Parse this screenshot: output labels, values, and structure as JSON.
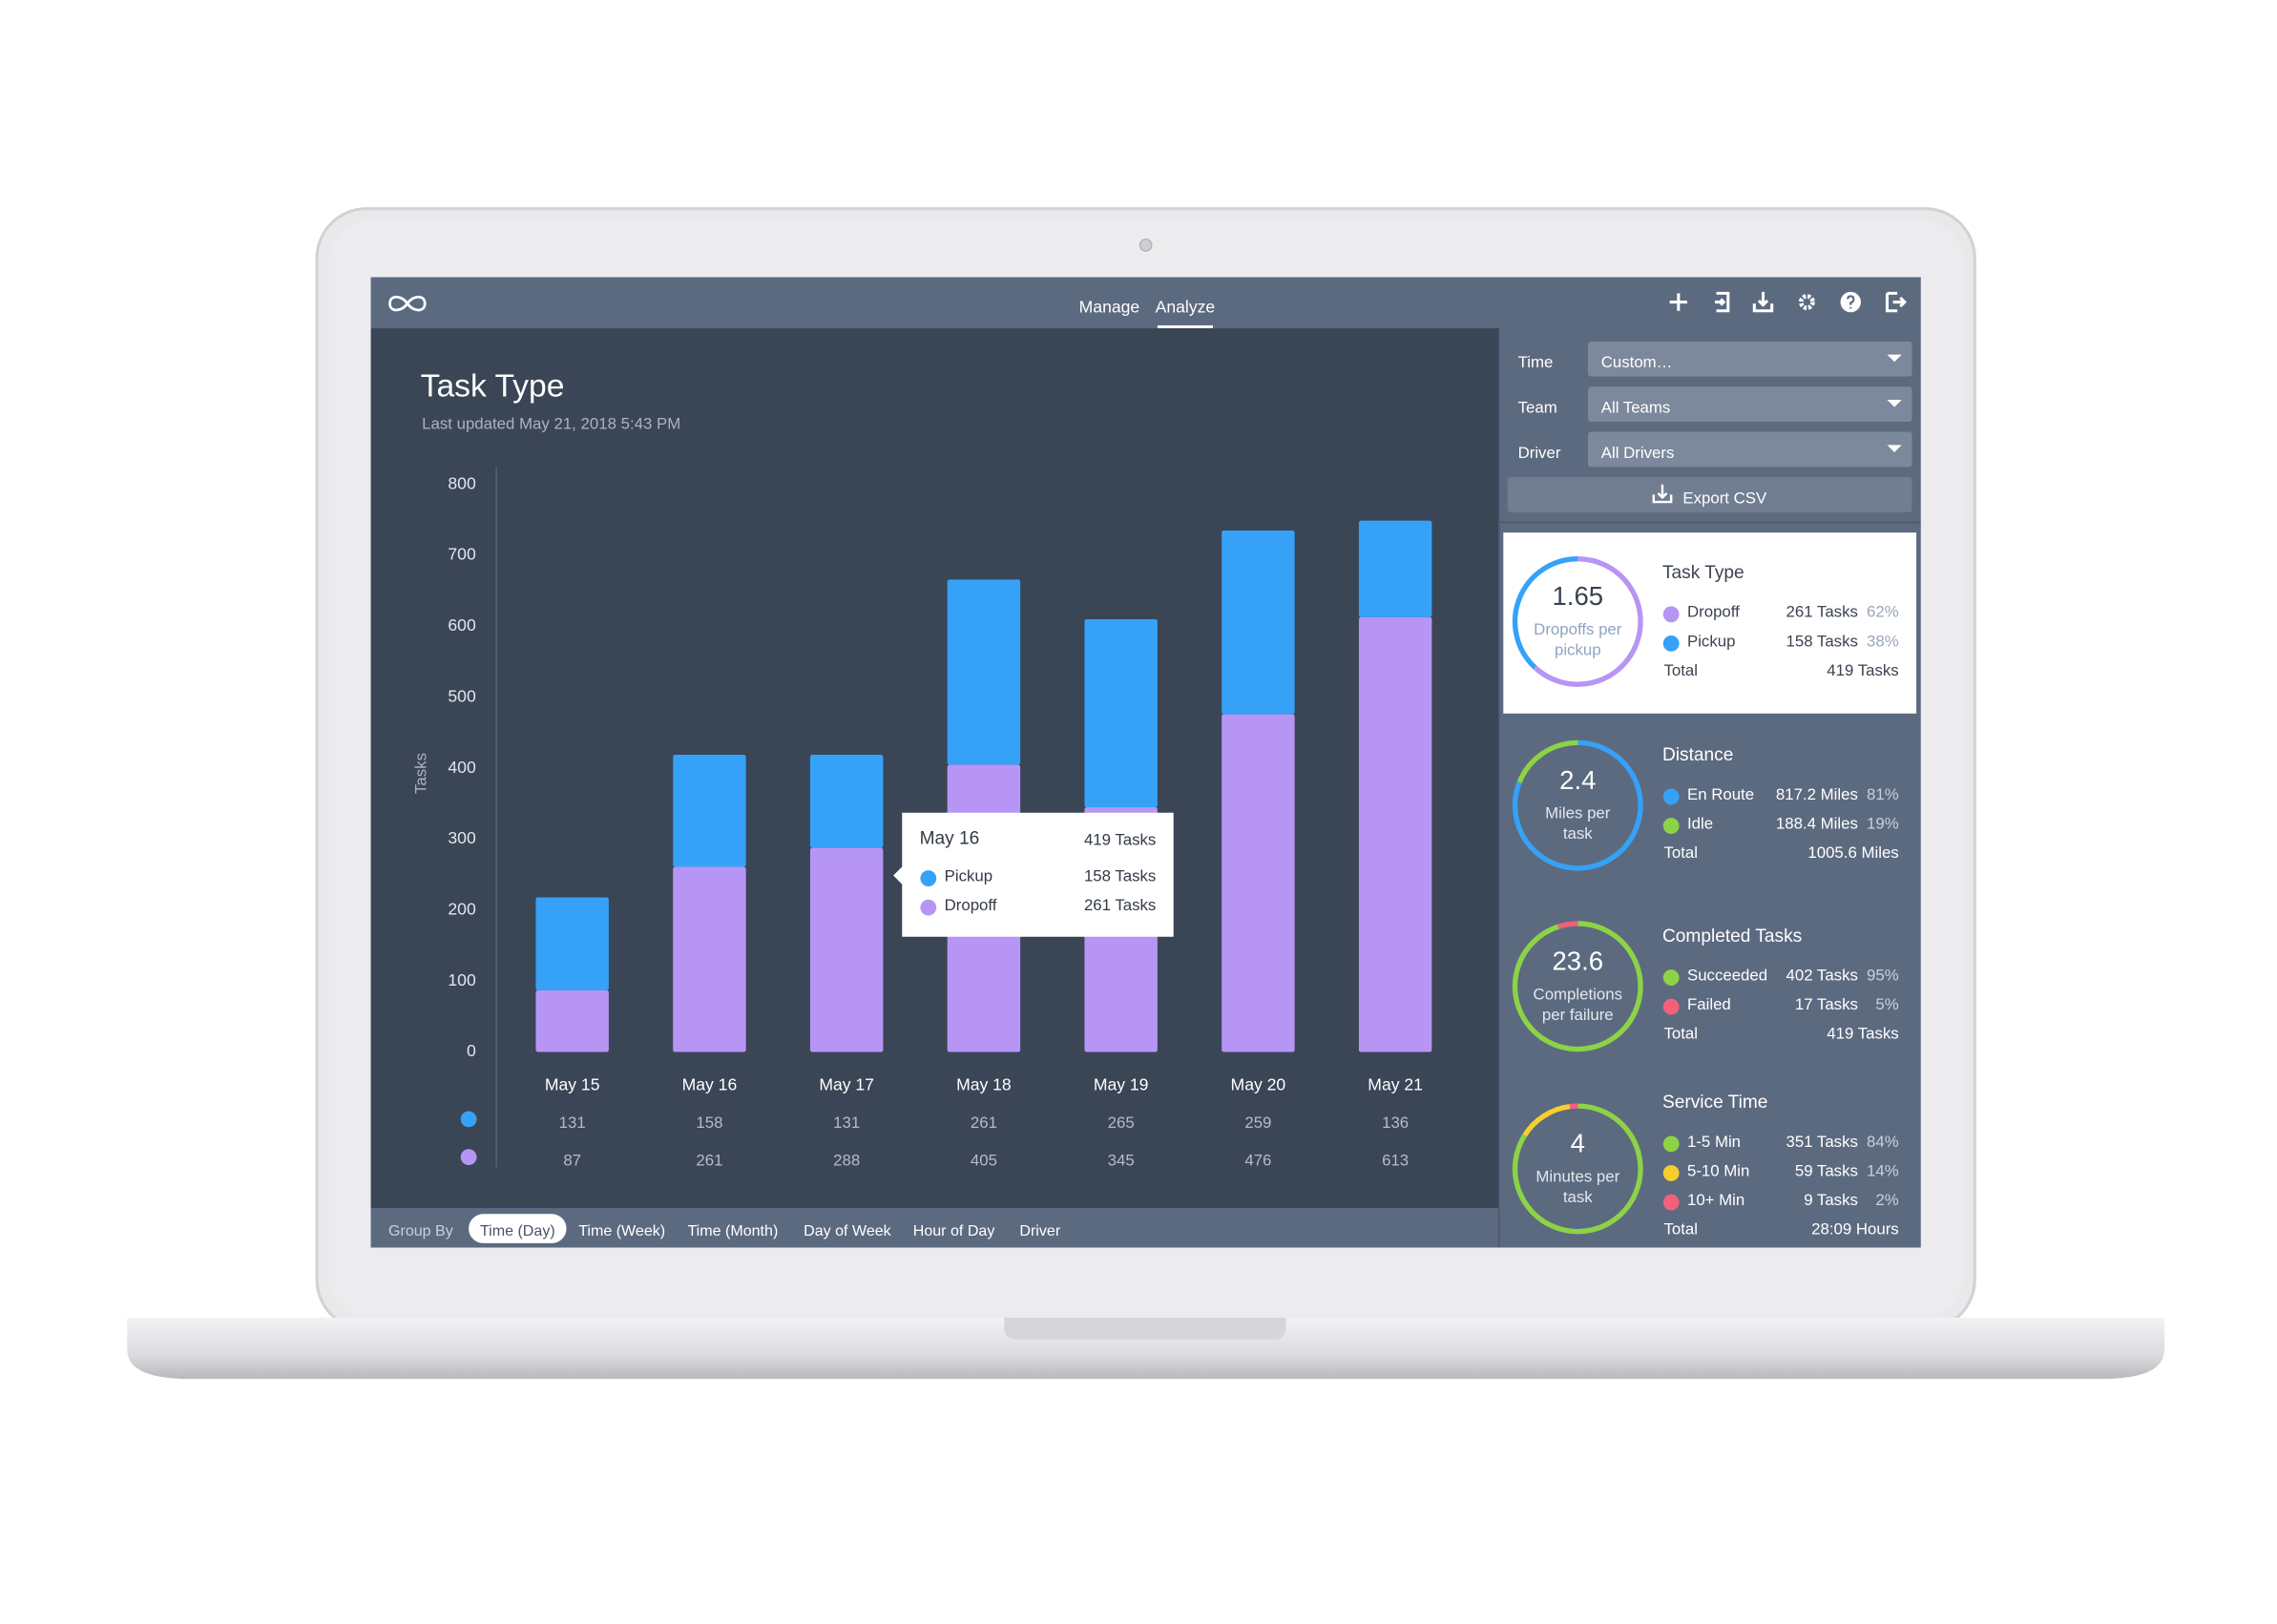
{
  "nav": {
    "tabs": [
      "Manage",
      "Analyze"
    ],
    "active": 1
  },
  "chart_data": {
    "type": "bar",
    "stacked": true,
    "title": "Task Type",
    "subtitle": "Last updated May 21, 2018 5:43 PM",
    "y_label": "Tasks",
    "categories": [
      "May 15",
      "May 16",
      "May 17",
      "May 18",
      "May 19",
      "May 20",
      "May 21"
    ],
    "series": [
      {
        "name": "Dropoff",
        "color": "#b795f4",
        "values": [
          87,
          261,
          288,
          405,
          345,
          476,
          613
        ]
      },
      {
        "name": "Pickup",
        "color": "#35a2f8",
        "values": [
          131,
          158,
          131,
          261,
          265,
          259,
          136
        ]
      }
    ],
    "ylim": [
      0,
      800
    ],
    "yticks": [
      0,
      100,
      200,
      300,
      400,
      500,
      600,
      700,
      800
    ],
    "tooltip": {
      "title": "May 16",
      "total": "419 Tasks",
      "rows": [
        {
          "name": "Pickup",
          "color": "#35a2f8",
          "value": "158 Tasks"
        },
        {
          "name": "Dropoff",
          "color": "#b795f4",
          "value": "261 Tasks"
        }
      ]
    }
  },
  "group_by": {
    "label": "Group By",
    "options": [
      "Time (Day)",
      "Time (Week)",
      "Time (Month)",
      "Day of Week",
      "Hour of Day",
      "Driver"
    ],
    "selected": 0
  },
  "filters": [
    {
      "label": "Time",
      "value": "Custom…"
    },
    {
      "label": "Team",
      "value": "All Teams"
    },
    {
      "label": "Driver",
      "value": "All Drivers"
    }
  ],
  "export": "Export CSV",
  "cards": [
    {
      "title": "Task Type",
      "metric": "1.65",
      "caption": [
        "Dropoffs per",
        "pickup"
      ],
      "rows": [
        {
          "name": "Dropoff",
          "color": "#b795f4",
          "value": "261 Tasks",
          "pct": "62%"
        },
        {
          "name": "Pickup",
          "color": "#35a2f8",
          "value": "158 Tasks",
          "pct": "38%"
        }
      ],
      "total_label": "Total",
      "total": "419 Tasks"
    },
    {
      "title": "Distance",
      "metric": "2.4",
      "caption": [
        "Miles per",
        "task"
      ],
      "rows": [
        {
          "name": "En Route",
          "color": "#35a2f8",
          "value": "817.2 Miles",
          "pct": "81%"
        },
        {
          "name": "Idle",
          "color": "#8cd346",
          "value": "188.4 Miles",
          "pct": "19%"
        }
      ],
      "total_label": "Total",
      "total": "1005.6 Miles"
    },
    {
      "title": "Completed Tasks",
      "metric": "23.6",
      "caption": [
        "Completions",
        "per failure"
      ],
      "rows": [
        {
          "name": "Succeeded",
          "color": "#8cd346",
          "value": "402 Tasks",
          "pct": "95%"
        },
        {
          "name": "Failed",
          "color": "#f2607a",
          "value": "17 Tasks",
          "pct": "5%"
        }
      ],
      "total_label": "Total",
      "total": "419 Tasks"
    },
    {
      "title": "Service Time",
      "metric": "4",
      "caption": [
        "Minutes per",
        "task"
      ],
      "rows": [
        {
          "name": "1-5 Min",
          "color": "#8cd346",
          "value": "351 Tasks",
          "pct": "84%"
        },
        {
          "name": "5-10 Min",
          "color": "#f7cf2c",
          "value": "59 Tasks",
          "pct": "14%"
        },
        {
          "name": "10+ Min",
          "color": "#f2607a",
          "value": "9 Tasks",
          "pct": "2%"
        }
      ],
      "total_label": "Total",
      "total": "28:09 Hours"
    }
  ]
}
